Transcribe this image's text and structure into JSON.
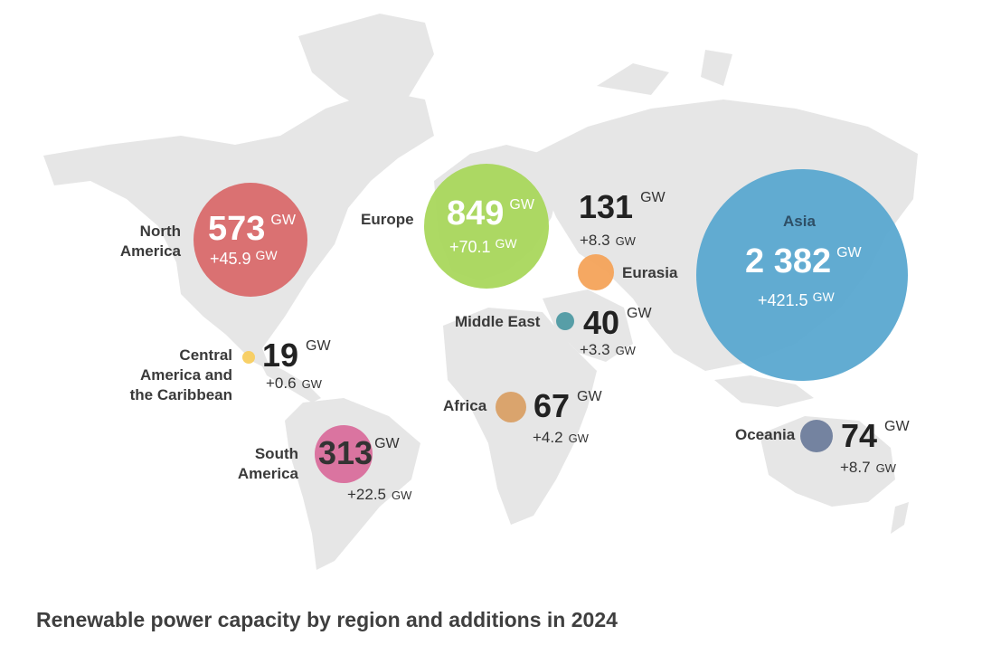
{
  "title": "Renewable power capacity by region and additions in 2024",
  "unit": "GW",
  "regions": [
    {
      "key": "north-america",
      "name_lines": [
        "North",
        "America"
      ],
      "capacity": "573",
      "addition": "+45.9",
      "color": "#d96a6b"
    },
    {
      "key": "europe",
      "name_lines": [
        "Europe"
      ],
      "capacity": "849",
      "addition": "+70.1",
      "color": "#a9d75c"
    },
    {
      "key": "eurasia",
      "name_lines": [
        "Eurasia"
      ],
      "capacity": "131",
      "addition": "+8.3",
      "color": "#f4a35a"
    },
    {
      "key": "asia",
      "name_lines": [
        "Asia"
      ],
      "capacity": "2 382",
      "addition": "+421.5",
      "color": "#5aa8d0"
    },
    {
      "key": "middle-east",
      "name_lines": [
        "Middle East"
      ],
      "capacity": "40",
      "addition": "+3.3",
      "color": "#4f9aa3"
    },
    {
      "key": "central-america",
      "name_lines": [
        "Central",
        "America and",
        "the Caribbean"
      ],
      "capacity": "19",
      "addition": "+0.6",
      "color": "#f8cd5f"
    },
    {
      "key": "africa",
      "name_lines": [
        "Africa"
      ],
      "capacity": "67",
      "addition": "+4.2",
      "color": "#d9a066"
    },
    {
      "key": "oceania",
      "name_lines": [
        "Oceania"
      ],
      "capacity": "74",
      "addition": "+8.7",
      "color": "#6e7d9c"
    },
    {
      "key": "south-america",
      "name_lines": [
        "South",
        "America"
      ],
      "capacity": "313",
      "addition": "+22.5",
      "color": "#d96e9c"
    }
  ]
}
